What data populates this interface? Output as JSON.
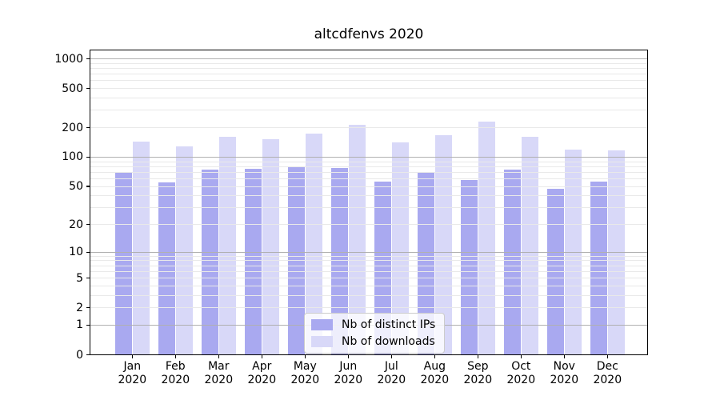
{
  "chart_data": {
    "type": "bar",
    "title": "altcdfenvs 2020",
    "year_label": "2020",
    "categories": [
      "Jan",
      "Feb",
      "Mar",
      "Apr",
      "May",
      "Jun",
      "Jul",
      "Aug",
      "Sep",
      "Oct",
      "Nov",
      "Dec"
    ],
    "series": [
      {
        "name": "Nb of distinct IPs",
        "color": "#a9a9f0",
        "values": [
          69,
          55,
          75,
          76,
          80,
          77,
          56,
          70,
          58,
          74,
          47,
          56
        ]
      },
      {
        "name": "Nb of downloads",
        "color": "#d8d8f8",
        "values": [
          144,
          130,
          162,
          152,
          174,
          215,
          142,
          167,
          229,
          162,
          119,
          117
        ]
      }
    ],
    "y_ticks": [
      0,
      1,
      2,
      5,
      10,
      20,
      50,
      100,
      200,
      500,
      1000
    ],
    "scale": "log1p",
    "ylim": [
      0,
      1243
    ],
    "xlabel": "",
    "ylabel": "",
    "grid": "both",
    "legend_position": "inside-bottom-center"
  },
  "colors": {
    "major_grid": "#b0b0b0",
    "minor_grid": "#e9e9e9",
    "axis": "#000000",
    "legend_border": "#cccccc",
    "legend_bg": "rgba(255,255,255,0.8)"
  }
}
